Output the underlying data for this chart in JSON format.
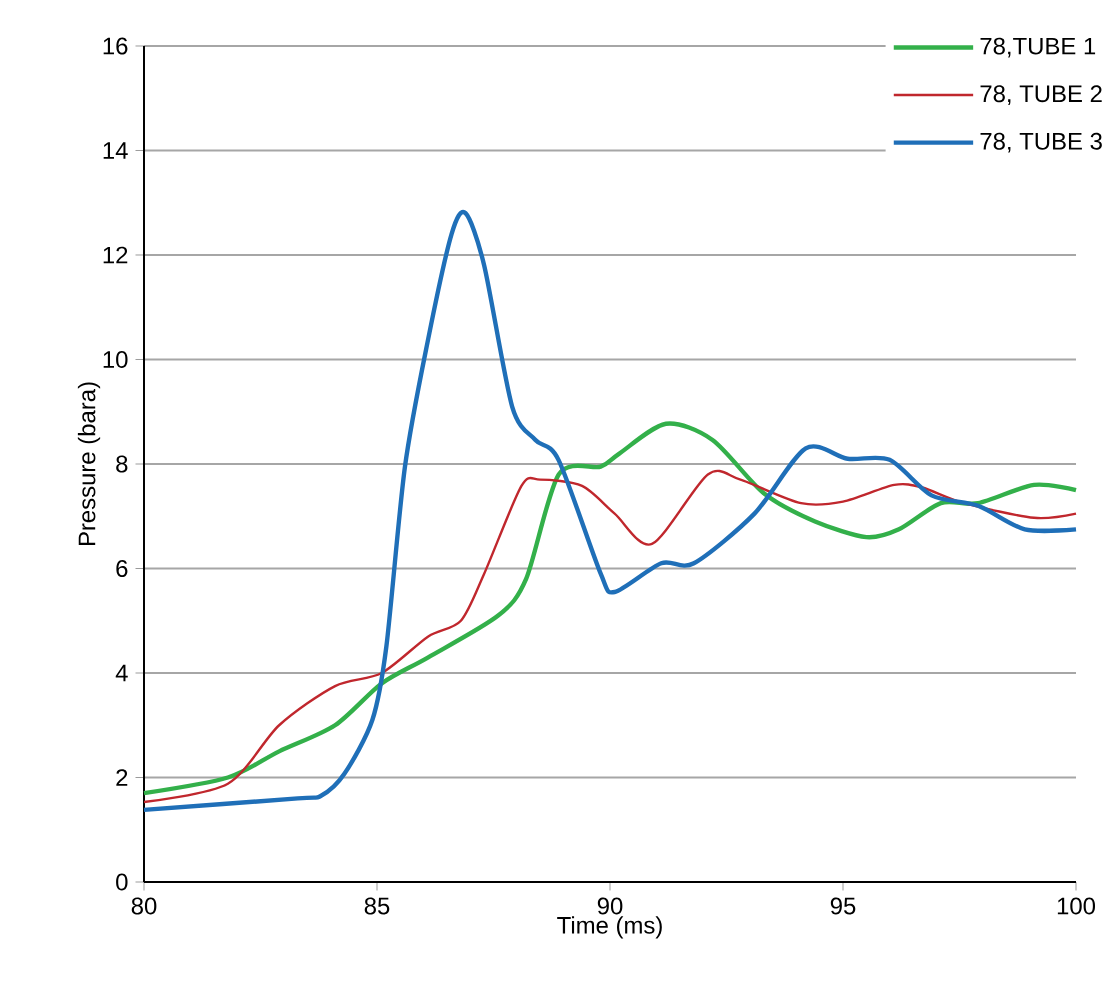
{
  "chart_data": {
    "type": "line",
    "xlabel": "Time (ms)",
    "ylabel": "Pressure (bara)",
    "xlim": [
      80,
      100
    ],
    "ylim": [
      0,
      16
    ],
    "xticks": [
      80,
      85,
      90,
      95,
      100
    ],
    "yticks": [
      0,
      2,
      4,
      6,
      8,
      10,
      12,
      14,
      16
    ],
    "grid": "y",
    "legend": "top right",
    "line_style": "solid",
    "series": [
      {
        "name": "78,TUBE 1",
        "color": "#33b04a",
        "x": [
          80,
          81.8,
          82.9,
          84.1,
          85.1,
          86.1,
          87.6,
          88.2,
          88.9,
          89.8,
          90.2,
          91.2,
          92.2,
          93.3,
          94.4,
          95.5,
          96.2,
          97.1,
          97.9,
          99.1,
          100
        ],
        "values": [
          1.7,
          2.0,
          2.5,
          3.0,
          3.8,
          4.3,
          5.1,
          5.8,
          7.8,
          7.95,
          8.2,
          8.77,
          8.46,
          7.44,
          6.9,
          6.6,
          6.75,
          7.25,
          7.25,
          7.6,
          7.5
        ]
      },
      {
        "name": "78, TUBE 2",
        "color": "#c0272d",
        "x": [
          80,
          81.8,
          82.9,
          84.1,
          85.1,
          86.1,
          86.8,
          87.3,
          88.1,
          88.5,
          89.4,
          90.1,
          90.9,
          92.1,
          92.8,
          94.1,
          95.0,
          96.1,
          96.7,
          97.6,
          99.1,
          100
        ],
        "values": [
          1.53,
          1.88,
          3.0,
          3.75,
          4.0,
          4.7,
          5.0,
          5.9,
          7.58,
          7.7,
          7.58,
          7.05,
          6.47,
          7.8,
          7.7,
          7.25,
          7.28,
          7.6,
          7.55,
          7.25,
          6.97,
          7.05
        ]
      },
      {
        "name": "78, TUBE 3",
        "color": "#1f6fb8",
        "x": [
          80,
          83.3,
          83.8,
          84.3,
          84.9,
          85.2,
          85.6,
          86.1,
          86.6,
          86.9,
          87.3,
          87.9,
          88.4,
          88.9,
          89.8,
          90.1,
          91.1,
          91.8,
          93.1,
          94.2,
          95.1,
          96.0,
          96.9,
          97.9,
          98.9,
          100
        ],
        "values": [
          1.38,
          1.6,
          1.65,
          2.07,
          3.1,
          4.5,
          7.95,
          10.4,
          12.4,
          12.8,
          11.8,
          9.1,
          8.46,
          8.07,
          5.9,
          5.55,
          6.1,
          6.1,
          7.05,
          8.3,
          8.1,
          8.08,
          7.4,
          7.2,
          6.75,
          6.75
        ]
      }
    ]
  }
}
